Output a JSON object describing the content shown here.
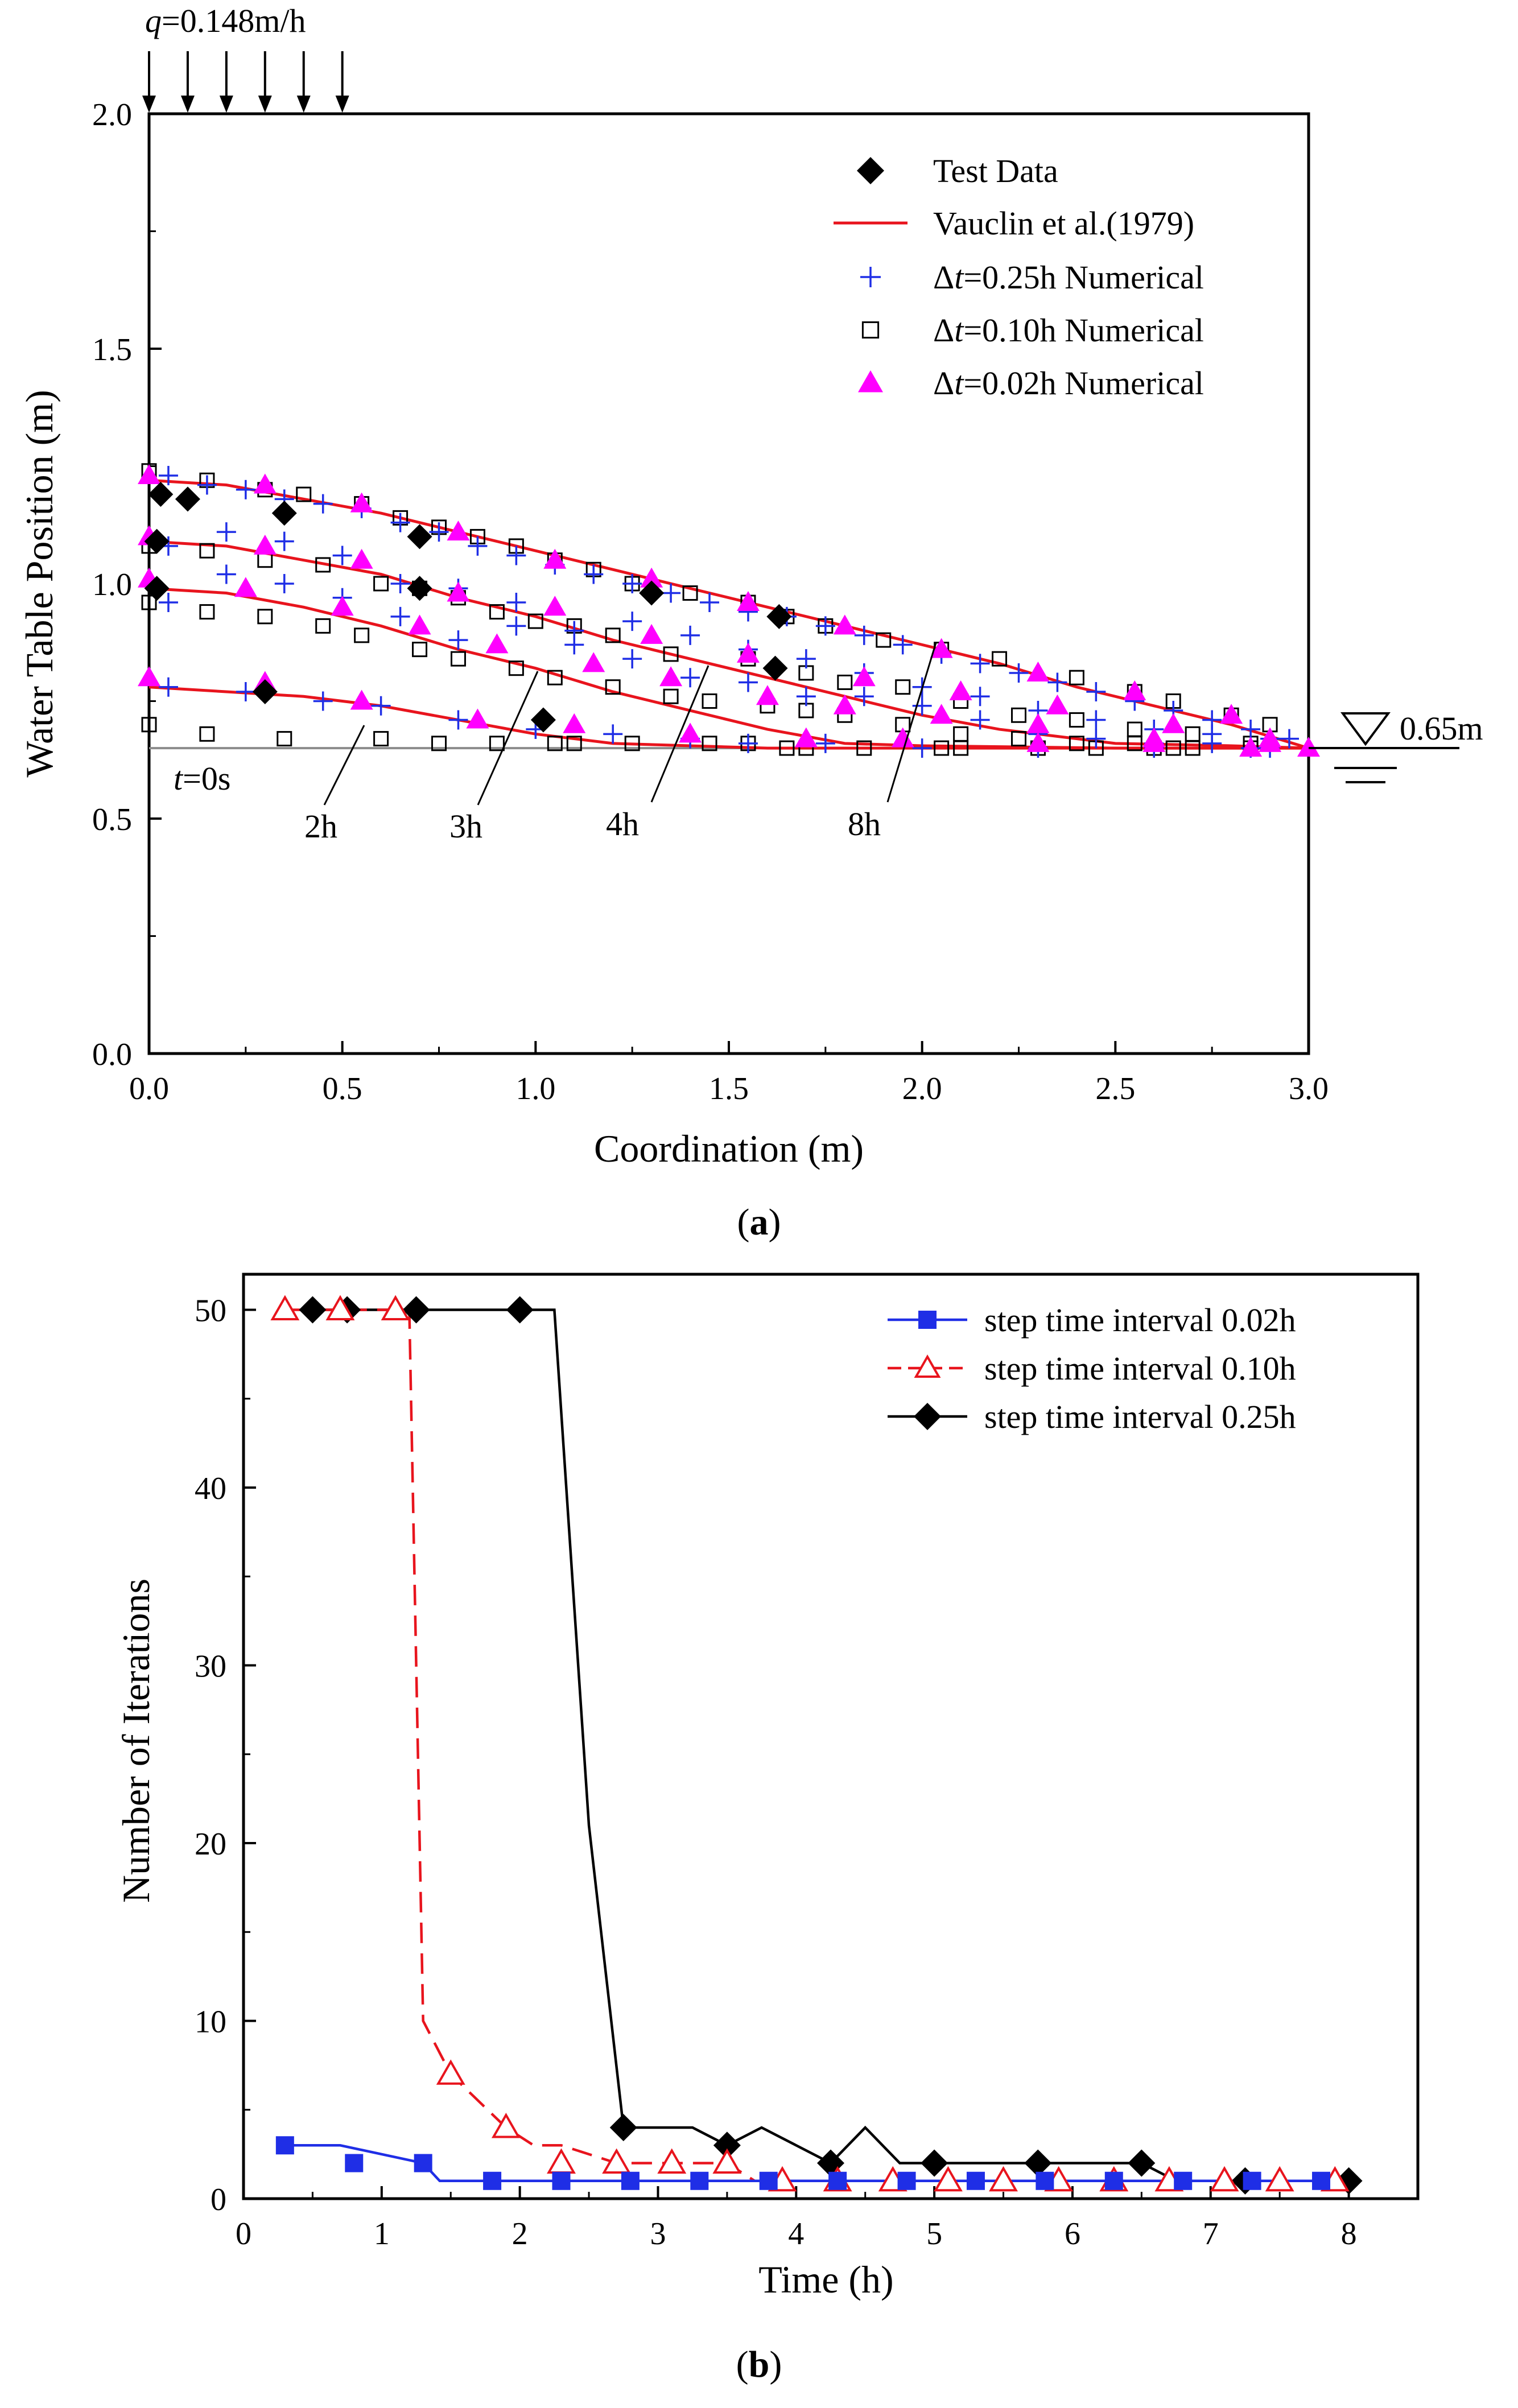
{
  "colors": {
    "black": "#000000",
    "red": "#e8141d",
    "blue": "#1f2ee6",
    "magenta": "#ff00ff",
    "gray": "#8c8c8c"
  },
  "panel_a": {
    "caption_open": "(",
    "caption_letter": "a",
    "caption_close": ")",
    "q_symbol": "q",
    "q_value": "=0.148m/h",
    "water_level": "0.65m",
    "t0_symbol": "t",
    "t0_value": "=0s",
    "time_labels": [
      "2h",
      "3h",
      "4h",
      "8h"
    ]
  },
  "panel_b": {
    "caption_open": "(",
    "caption_letter": "b",
    "caption_close": ")"
  },
  "chart_data": [
    {
      "type": "line",
      "title": "",
      "xlabel": "Coordination (m)",
      "ylabel": "Water Table Position (m)",
      "xlim": [
        0.0,
        3.0
      ],
      "ylim": [
        0.0,
        2.0
      ],
      "xticks": [
        "0.0",
        "0.5",
        "1.0",
        "1.5",
        "2.0",
        "2.5",
        "3.0"
      ],
      "yticks": [
        "0.0",
        "0.5",
        "1.0",
        "1.5",
        "2.0"
      ],
      "legend": [
        {
          "label": "Test Data",
          "marker": "diamond"
        },
        {
          "label": "Vauclin et al.(1979)",
          "marker": "line"
        },
        {
          "delta": "Δ",
          "t": "t",
          "label": "=0.25h Numerical",
          "marker": "plus"
        },
        {
          "delta": "Δ",
          "t": "t",
          "label": "=0.10h Numerical",
          "marker": "square"
        },
        {
          "delta": "Δ",
          "t": "t",
          "label": "=0.02h Numerical",
          "marker": "triangle"
        }
      ],
      "series": {
        "vauclin": [
          {
            "time": "2h",
            "x": [
              0.0,
              0.2,
              0.4,
              0.6,
              0.8,
              1.0,
              1.2,
              1.4,
              1.6,
              2.0,
              2.5,
              3.0
            ],
            "y": [
              0.78,
              0.77,
              0.76,
              0.74,
              0.71,
              0.68,
              0.66,
              0.655,
              0.65,
              0.65,
              0.65,
              0.65
            ]
          },
          {
            "time": "3h",
            "x": [
              0.0,
              0.2,
              0.4,
              0.6,
              0.8,
              1.0,
              1.2,
              1.4,
              1.6,
              1.8,
              2.0,
              2.5,
              3.0
            ],
            "y": [
              0.99,
              0.98,
              0.95,
              0.91,
              0.86,
              0.82,
              0.77,
              0.73,
              0.69,
              0.66,
              0.655,
              0.65,
              0.65
            ]
          },
          {
            "time": "4h",
            "x": [
              0.0,
              0.2,
              0.4,
              0.6,
              0.8,
              1.0,
              1.2,
              1.4,
              1.6,
              1.8,
              2.0,
              2.2,
              2.5,
              2.8,
              3.0
            ],
            "y": [
              1.09,
              1.08,
              1.05,
              1.02,
              0.97,
              0.93,
              0.88,
              0.84,
              0.8,
              0.76,
              0.72,
              0.69,
              0.66,
              0.655,
              0.65
            ]
          },
          {
            "time": "8h",
            "x": [
              0.0,
              0.2,
              0.4,
              0.6,
              0.8,
              1.0,
              1.2,
              1.4,
              1.6,
              1.8,
              2.0,
              2.2,
              2.4,
              2.6,
              2.8,
              3.0
            ],
            "y": [
              1.22,
              1.21,
              1.18,
              1.15,
              1.11,
              1.07,
              1.03,
              0.99,
              0.95,
              0.91,
              0.87,
              0.83,
              0.78,
              0.74,
              0.7,
              0.65
            ]
          }
        ],
        "test_data": {
          "x": [
            0.03,
            0.02,
            0.1,
            0.35,
            0.7,
            0.7,
            0.02,
            0.3,
            1.02,
            1.3,
            1.63,
            1.62
          ],
          "y": [
            1.19,
            1.09,
            1.18,
            1.15,
            1.1,
            0.99,
            0.99,
            0.77,
            0.71,
            0.98,
            0.93,
            0.82
          ]
        },
        "dt_025": {
          "x": [
            0.05,
            0.15,
            0.25,
            0.35,
            0.45,
            0.55,
            0.65,
            0.75,
            0.85,
            0.95,
            1.05,
            1.15,
            1.25,
            1.35,
            1.45,
            1.55,
            1.65,
            1.75,
            1.85,
            1.95,
            2.05,
            2.15,
            2.25,
            2.35,
            2.45,
            2.55,
            2.65,
            2.75,
            2.85,
            2.95,
            0.05,
            0.2,
            0.35,
            0.5,
            0.65,
            0.8,
            0.95,
            1.1,
            1.25,
            1.4,
            1.55,
            1.7,
            1.85,
            2.0,
            2.15,
            2.3,
            2.45,
            2.6,
            2.75,
            2.9,
            0.05,
            0.2,
            0.35,
            0.5,
            0.65,
            0.8,
            0.95,
            1.1,
            1.25,
            1.4,
            1.55,
            1.7,
            1.85,
            2.0,
            2.15,
            2.3,
            2.45,
            2.6,
            2.75,
            2.9,
            0.05,
            0.25,
            0.45,
            0.6,
            0.8,
            1.0,
            1.2,
            1.4,
            1.55,
            1.75,
            2.0,
            2.3,
            2.6,
            2.85
          ],
          "y": [
            1.23,
            1.21,
            1.2,
            1.18,
            1.17,
            1.16,
            1.13,
            1.11,
            1.08,
            1.06,
            1.04,
            1.02,
            1.0,
            0.98,
            0.96,
            0.94,
            0.93,
            0.91,
            0.89,
            0.87,
            0.85,
            0.83,
            0.81,
            0.79,
            0.77,
            0.75,
            0.73,
            0.71,
            0.69,
            0.67,
            1.08,
            1.11,
            1.09,
            1.06,
            1.0,
            0.99,
            0.96,
            0.9,
            0.92,
            0.89,
            0.86,
            0.84,
            0.81,
            0.78,
            0.76,
            0.73,
            0.71,
            0.69,
            0.68,
            0.67,
            0.96,
            1.02,
            1.0,
            0.97,
            0.93,
            0.88,
            0.91,
            0.87,
            0.84,
            0.8,
            0.79,
            0.76,
            0.76,
            0.74,
            0.71,
            0.68,
            0.67,
            0.66,
            0.66,
            0.65,
            0.78,
            0.77,
            0.75,
            0.74,
            0.71,
            0.69,
            0.68,
            0.67,
            0.66,
            0.66,
            0.65,
            0.65,
            0.65,
            0.65
          ]
        },
        "dt_010": {
          "x": [
            0.0,
            0.15,
            0.3,
            0.4,
            0.55,
            0.65,
            0.75,
            0.85,
            0.95,
            1.05,
            1.15,
            1.25,
            1.4,
            1.55,
            1.65,
            1.75,
            1.9,
            2.05,
            2.2,
            2.4,
            2.55,
            2.65,
            2.8,
            2.9,
            0.0,
            0.15,
            0.3,
            0.45,
            0.6,
            0.7,
            0.8,
            0.9,
            1.0,
            1.1,
            1.2,
            1.35,
            1.55,
            1.7,
            1.8,
            1.95,
            2.1,
            2.25,
            2.4,
            2.55,
            2.7,
            2.85,
            0.0,
            0.15,
            0.3,
            0.45,
            0.55,
            0.7,
            0.8,
            0.95,
            1.05,
            1.2,
            1.35,
            1.45,
            1.6,
            1.7,
            1.8,
            1.95,
            2.1,
            2.25,
            2.4,
            2.55,
            2.7,
            0.0,
            0.15,
            0.35,
            0.6,
            0.75,
            0.9,
            1.05,
            1.25,
            1.45,
            1.65,
            1.85,
            2.05,
            2.3,
            2.6,
            2.85
          ],
          "y": [
            1.24,
            1.22,
            1.2,
            1.19,
            1.17,
            1.14,
            1.12,
            1.1,
            1.08,
            1.05,
            1.03,
            1.0,
            0.98,
            0.96,
            0.93,
            0.91,
            0.88,
            0.86,
            0.84,
            0.8,
            0.77,
            0.75,
            0.72,
            0.7,
            1.08,
            1.07,
            1.05,
            1.04,
            1.0,
            0.99,
            0.97,
            0.94,
            0.92,
            0.91,
            0.89,
            0.85,
            0.84,
            0.81,
            0.79,
            0.78,
            0.75,
            0.72,
            0.71,
            0.69,
            0.68,
            0.66,
            0.96,
            0.94,
            0.93,
            0.91,
            0.89,
            0.86,
            0.84,
            0.82,
            0.8,
            0.78,
            0.76,
            0.75,
            0.74,
            0.73,
            0.72,
            0.7,
            0.68,
            0.67,
            0.66,
            0.66,
            0.65,
            0.7,
            0.68,
            0.67,
            0.67,
            0.66,
            0.66,
            0.66,
            0.66,
            0.66,
            0.65,
            0.65,
            0.65,
            0.65,
            0.65,
            0.65
          ],
          "x_extra": [
            1.1,
            1.55,
            1.7,
            2.1,
            2.45,
            2.65
          ],
          "y_extra": [
            0.66,
            0.66,
            0.65,
            0.65,
            0.65,
            0.65
          ]
        },
        "dt_002": {
          "x": [
            0.0,
            0.3,
            0.55,
            0.8,
            1.05,
            1.3,
            1.55,
            1.8,
            2.05,
            2.3,
            2.55,
            2.8,
            3.0,
            0.0,
            0.3,
            0.55,
            0.8,
            1.05,
            1.3,
            1.55,
            1.85,
            2.1,
            2.35,
            2.65,
            2.9,
            0.0,
            0.25,
            0.5,
            0.7,
            0.9,
            1.15,
            1.35,
            1.6,
            1.8,
            2.05,
            2.3,
            2.6,
            2.9,
            0.0,
            0.3,
            0.55,
            0.85,
            1.1,
            1.4,
            1.7,
            1.95,
            2.3,
            2.6,
            2.85
          ],
          "y": [
            1.23,
            1.21,
            1.17,
            1.11,
            1.05,
            1.01,
            0.96,
            0.91,
            0.86,
            0.81,
            0.77,
            0.72,
            0.65,
            1.1,
            1.08,
            1.05,
            0.98,
            0.95,
            0.89,
            0.85,
            0.8,
            0.77,
            0.74,
            0.7,
            0.67,
            1.01,
            0.99,
            0.95,
            0.91,
            0.87,
            0.83,
            0.8,
            0.76,
            0.74,
            0.72,
            0.7,
            0.67,
            0.66,
            0.8,
            0.79,
            0.75,
            0.71,
            0.7,
            0.68,
            0.67,
            0.67,
            0.66,
            0.66,
            0.65
          ]
        }
      }
    },
    {
      "type": "line",
      "title": "",
      "xlabel": "Time (h)",
      "ylabel": "Number of Iterations",
      "xlim": [
        0,
        8.5
      ],
      "ylim": [
        0,
        52
      ],
      "xticks": [
        "0",
        "1",
        "2",
        "3",
        "4",
        "5",
        "6",
        "7",
        "8"
      ],
      "yticks": [
        "0",
        "10",
        "20",
        "30",
        "40",
        "50"
      ],
      "series": [
        {
          "name": "step time interval 0.02h",
          "marker": "square",
          "x": [
            0.3,
            0.7,
            1.3,
            1.42,
            2.0,
            3.0,
            4.0,
            5.0,
            6.0,
            7.0,
            8.0
          ],
          "y": [
            3,
            3,
            2,
            1,
            1,
            1,
            1,
            1,
            1,
            1,
            1
          ],
          "marker_x": [
            0.3,
            0.8,
            1.3,
            1.8,
            2.3,
            2.8,
            3.3,
            3.8,
            4.3,
            4.8,
            5.3,
            5.8,
            6.3,
            6.8,
            7.3,
            7.8
          ],
          "marker_y": [
            3,
            2,
            2,
            1,
            1,
            1,
            1,
            1,
            1,
            1,
            1,
            1,
            1,
            1,
            1,
            1
          ]
        },
        {
          "name": "step time interval 0.10h",
          "marker": "triangle",
          "x": [
            0.3,
            0.7,
            1.2,
            1.3,
            1.5,
            1.9,
            2.1,
            2.3,
            2.7,
            3.0,
            3.5,
            3.7,
            3.9,
            4.3,
            5.1,
            7.2,
            7.8
          ],
          "y": [
            50,
            50,
            50,
            10,
            7,
            4,
            3,
            3,
            2,
            2,
            2,
            1,
            1,
            1,
            1,
            1,
            1
          ],
          "marker_x": [
            0.3,
            0.7,
            1.1,
            1.5,
            1.9,
            2.3,
            2.7,
            3.1,
            3.5,
            3.9,
            4.3,
            4.7,
            5.1,
            5.5,
            5.9,
            6.3,
            6.7,
            7.1,
            7.5,
            7.9
          ],
          "marker_y": [
            50,
            50,
            50,
            7,
            4,
            2,
            2,
            2,
            2,
            1,
            1,
            1,
            1,
            1,
            1,
            1,
            1,
            1,
            1,
            1
          ]
        },
        {
          "name": "step time interval 0.25h",
          "marker": "diamond",
          "x": [
            0.5,
            0.75,
            1.0,
            1.25,
            2.0,
            2.25,
            2.5,
            2.75,
            3.0,
            3.25,
            3.5,
            3.75,
            4.0,
            4.25,
            4.5,
            4.75,
            5.0,
            5.25,
            5.5,
            5.75,
            6.0,
            6.25,
            6.5,
            6.75,
            7.0,
            7.25,
            7.5,
            7.75,
            8.0
          ],
          "y": [
            50,
            50,
            50,
            50,
            50,
            50,
            21,
            4,
            4,
            4,
            3,
            4,
            3,
            2,
            4,
            2,
            2,
            2,
            2,
            2,
            2,
            2,
            2,
            1,
            1,
            1,
            1,
            1,
            1
          ],
          "marker_x": [
            0.5,
            0.75,
            1.25,
            2.0,
            2.75,
            3.5,
            4.25,
            5.0,
            5.75,
            6.5,
            7.25,
            8.0
          ],
          "marker_y": [
            50,
            50,
            50,
            50,
            4,
            3,
            2,
            2,
            2,
            2,
            1,
            1
          ]
        }
      ]
    }
  ]
}
